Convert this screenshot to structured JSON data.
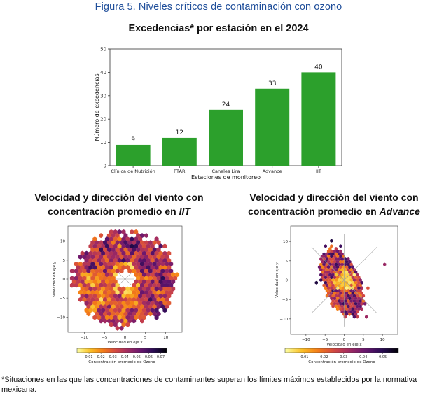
{
  "figure_title": "Figura 5. Niveles críticos de contaminación con ozono",
  "chart_data": [
    {
      "type": "bar",
      "title": "Excedencias* por estación en el 2024",
      "xlabel": "Estaciones de monitoreo",
      "ylabel": "Número de excedencias",
      "categories": [
        "Clínica de Nutrición",
        "PTAR",
        "Canales Lira",
        "Advance",
        "IIT"
      ],
      "values": [
        9,
        12,
        24,
        33,
        40
      ],
      "data_labels": [
        "9",
        "12",
        "24",
        "33",
        "40"
      ],
      "ylim": [
        0,
        50
      ],
      "yticks": [
        0,
        10,
        20,
        30,
        40,
        50
      ],
      "bar_color": "#2ca02c",
      "grid": false
    },
    {
      "type": "heatmap",
      "title_prefix": "Velocidad y dirección del viento con concentración promedio en ",
      "title_station": "IIT",
      "xlabel": "Velocidad en eje x",
      "ylabel": "Velocidad en eje y",
      "colorbar_label": "Concentración promedio de Ozono",
      "xticks": [
        -10,
        -5,
        0,
        5,
        10
      ],
      "yticks": [
        -10,
        -5,
        0,
        5,
        10
      ],
      "xlim": [
        -14,
        14
      ],
      "ylim": [
        -14,
        14
      ],
      "colorbar_ticks": [
        "0.01",
        "0.02",
        "0.03",
        "0.04",
        "0.05",
        "0.06",
        "0.07"
      ],
      "colorbar_range": [
        0.0,
        0.075
      ],
      "colormap": "inferno_r"
    },
    {
      "type": "heatmap",
      "title_prefix": "Velocidad y dirección del viento con concentración promedio en ",
      "title_station": "Advance",
      "xlabel": "Velocidad en eje x",
      "ylabel": "Velocidad en eje y",
      "colorbar_label": "Concentración promedio de Ozono",
      "xticks": [
        -10,
        -5,
        0,
        5,
        10
      ],
      "yticks": [
        -10,
        -5,
        0,
        5,
        10
      ],
      "xlim": [
        -14,
        14
      ],
      "ylim": [
        -14,
        14
      ],
      "colorbar_ticks": [
        "0.01",
        "0.02",
        "0.03",
        "0.04",
        "0.05"
      ],
      "colorbar_range": [
        0.0,
        0.058
      ],
      "colormap": "inferno_r"
    }
  ],
  "footnote": "*Situaciones en las que las concentraciones de contaminantes superan los límites máximos establecidos por la normativa mexicana."
}
